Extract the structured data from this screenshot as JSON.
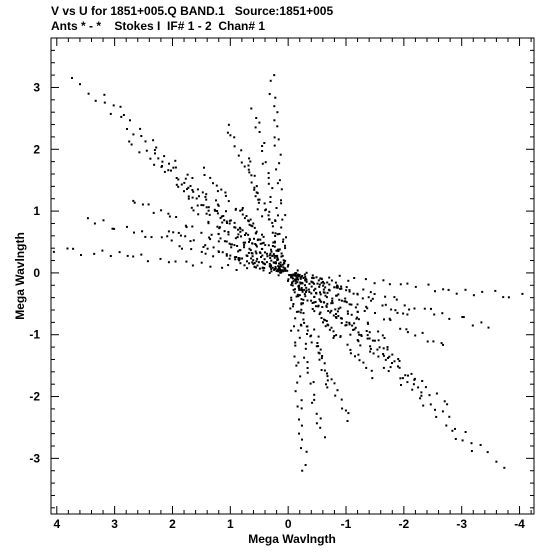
{
  "header": {
    "line1": "V vs U for 1851+005.Q BAND.1   Source:1851+005",
    "line2": "Ants * - *    Stokes I  IF# 1 - 2  Chan# 1"
  },
  "chart_data": {
    "type": "scatter",
    "xlabel": "Mega Wavlngth",
    "ylabel": "Mega Wavlngth",
    "xlim": [
      4.1,
      -4.25
    ],
    "ylim": [
      -3.9,
      3.8
    ],
    "x_ticks": [
      4,
      3,
      2,
      1,
      0,
      -1,
      -2,
      -3,
      -4
    ],
    "x_tick_labels": [
      "4",
      "3",
      "2",
      "1",
      "0",
      "-1",
      "-2",
      "-3",
      "-4"
    ],
    "y_ticks": [
      3,
      2,
      1,
      0,
      -1,
      -2,
      -3
    ],
    "y_tick_labels": [
      "3",
      "2",
      "1",
      "0",
      "-1",
      "-2",
      "-3"
    ],
    "grid": false,
    "marker_color": "#000000",
    "point_count": 1000,
    "points_note": "uv coverage: point-symmetric radial tracks through origin",
    "tracks": [
      {
        "u": 3.85,
        "v": 3.3
      },
      {
        "u": 3.3,
        "v": 2.95
      },
      {
        "u": 2.9,
        "v": 2.25
      },
      {
        "u": 2.4,
        "v": 1.95
      },
      {
        "u": 2.05,
        "v": 1.5
      },
      {
        "u": 1.7,
        "v": 1.05
      },
      {
        "u": 1.35,
        "v": 0.65
      },
      {
        "u": 1.05,
        "v": 0.25
      },
      {
        "u": 0.85,
        "v": 1.1
      },
      {
        "u": 0.75,
        "v": 1.9
      },
      {
        "u": 0.6,
        "v": 2.7
      },
      {
        "u": 0.3,
        "v": 3.3
      },
      {
        "u": 2.2,
        "v": 0.7
      },
      {
        "u": 4.15,
        "v": 0.4
      },
      {
        "u": 3.6,
        "v": 0.9
      },
      {
        "u": 2.8,
        "v": 1.25
      },
      {
        "u": 1.5,
        "v": 1.75
      },
      {
        "u": 1.1,
        "v": 2.5
      }
    ]
  }
}
